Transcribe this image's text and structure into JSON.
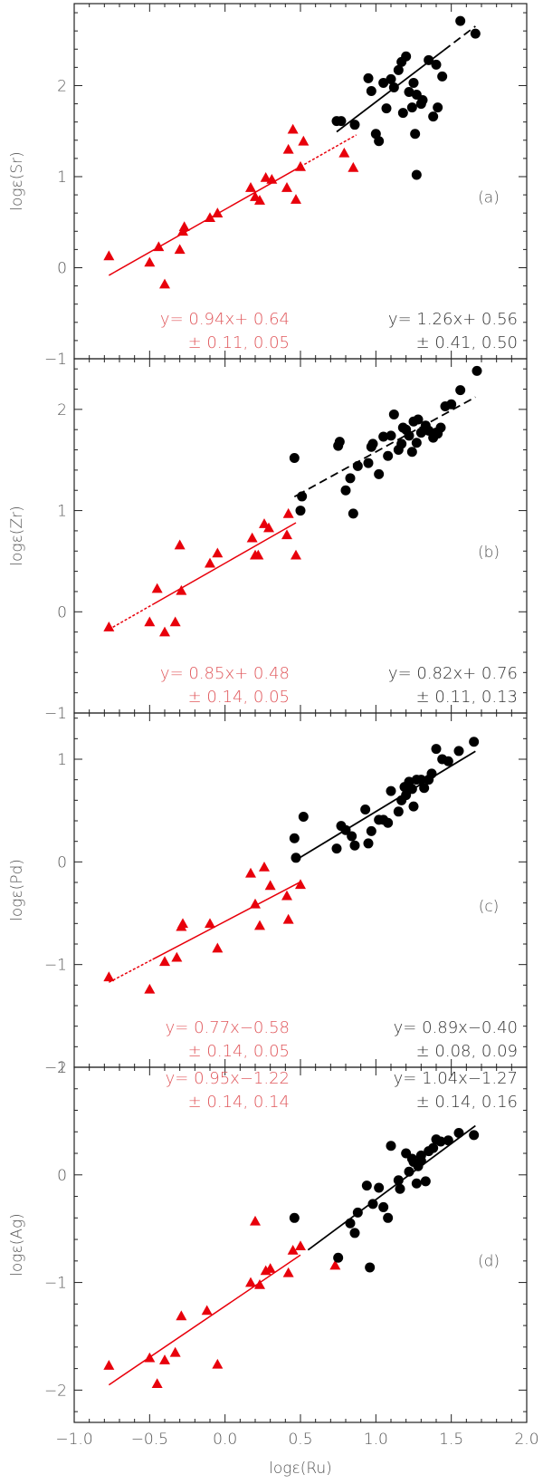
{
  "chart_data": {
    "type": "scatter",
    "xlabel": "logε(Ru)",
    "xlim": [
      -1.0,
      2.0
    ],
    "x_ticks": [
      -1.0,
      -0.5,
      0.0,
      0.5,
      1.0,
      1.5,
      2.0
    ],
    "x_tick_labels": [
      "−1.0",
      "−0.5",
      "0.0",
      "0.5",
      "1.0",
      "1.5",
      "2.0"
    ],
    "colors": {
      "red": "#e8000b",
      "black": "#000000",
      "fit_text_red": "#e0575b",
      "fit_text_black": "#333333"
    },
    "panels": [
      {
        "id": "a",
        "tag": "(a)",
        "ylabel": "logε(Sr)",
        "ylim": [
          -1.0,
          2.9
        ],
        "y_ticks": [
          -1,
          0,
          1,
          2
        ],
        "y_tick_labels": [
          "−1",
          "0",
          "1",
          "2"
        ],
        "red_points": [
          [
            -0.77,
            0.13
          ],
          [
            -0.5,
            0.06
          ],
          [
            -0.44,
            0.23
          ],
          [
            -0.4,
            -0.18
          ],
          [
            -0.3,
            0.2
          ],
          [
            -0.28,
            0.4
          ],
          [
            -0.27,
            0.45
          ],
          [
            -0.1,
            0.55
          ],
          [
            -0.05,
            0.6
          ],
          [
            0.17,
            0.88
          ],
          [
            0.2,
            0.78
          ],
          [
            0.23,
            0.74
          ],
          [
            0.27,
            0.99
          ],
          [
            0.31,
            0.97
          ],
          [
            0.41,
            0.88
          ],
          [
            0.42,
            1.3
          ],
          [
            0.45,
            1.52
          ],
          [
            0.47,
            0.75
          ],
          [
            0.5,
            1.11
          ],
          [
            0.52,
            1.39
          ],
          [
            0.79,
            1.26
          ],
          [
            0.85,
            1.1
          ]
        ],
        "black_points": [
          [
            0.74,
            1.61
          ],
          [
            0.77,
            1.61
          ],
          [
            0.86,
            1.57
          ],
          [
            0.95,
            2.08
          ],
          [
            0.97,
            1.94
          ],
          [
            1.0,
            1.47
          ],
          [
            1.02,
            1.39
          ],
          [
            1.05,
            2.03
          ],
          [
            1.07,
            1.75
          ],
          [
            1.1,
            2.07
          ],
          [
            1.12,
            1.98
          ],
          [
            1.15,
            2.17
          ],
          [
            1.17,
            2.26
          ],
          [
            1.18,
            1.7
          ],
          [
            1.2,
            2.32
          ],
          [
            1.22,
            1.93
          ],
          [
            1.24,
            1.76
          ],
          [
            1.25,
            2.03
          ],
          [
            1.26,
            1.47
          ],
          [
            1.27,
            1.9
          ],
          [
            1.27,
            1.02
          ],
          [
            1.3,
            1.8
          ],
          [
            1.31,
            1.84
          ],
          [
            1.35,
            2.28
          ],
          [
            1.38,
            1.66
          ],
          [
            1.4,
            2.23
          ],
          [
            1.41,
            1.76
          ],
          [
            1.44,
            2.1
          ],
          [
            1.56,
            2.71
          ],
          [
            1.66,
            2.57
          ]
        ],
        "red_fit": {
          "slope": 0.94,
          "intercept": 0.64,
          "x_range": [
            -0.77,
            0.87
          ],
          "solid_to": 0.5
        },
        "black_fit": {
          "slope": 1.26,
          "intercept": 0.56,
          "x_range": [
            0.74,
            1.66
          ],
          "dash_from": 1.45
        },
        "red_eq": "y= 0.94x+ 0.64",
        "red_err": "± 0.11, 0.05",
        "black_eq": "y= 1.26x+ 0.56",
        "black_err": "± 0.41, 0.50"
      },
      {
        "id": "b",
        "tag": "(b)",
        "ylabel": "logε(Zr)",
        "ylim": [
          -1.0,
          2.5
        ],
        "y_ticks": [
          -1,
          0,
          1,
          2
        ],
        "y_tick_labels": [
          "−1",
          "0",
          "1",
          "2"
        ],
        "red_points": [
          [
            -0.77,
            -0.15
          ],
          [
            -0.5,
            -0.1
          ],
          [
            -0.45,
            0.23
          ],
          [
            -0.4,
            -0.2
          ],
          [
            -0.33,
            -0.1
          ],
          [
            -0.3,
            0.66
          ],
          [
            -0.29,
            0.21
          ],
          [
            -0.1,
            0.48
          ],
          [
            -0.05,
            0.58
          ],
          [
            0.18,
            0.73
          ],
          [
            0.2,
            0.56
          ],
          [
            0.22,
            0.56
          ],
          [
            0.26,
            0.87
          ],
          [
            0.29,
            0.83
          ],
          [
            0.41,
            0.76
          ],
          [
            0.42,
            0.97
          ],
          [
            0.47,
            0.56
          ]
        ],
        "black_points": [
          [
            0.46,
            1.52
          ],
          [
            0.5,
            1.0
          ],
          [
            0.51,
            1.14
          ],
          [
            0.75,
            1.64
          ],
          [
            0.76,
            1.68
          ],
          [
            0.8,
            1.2
          ],
          [
            0.83,
            1.32
          ],
          [
            0.85,
            0.97
          ],
          [
            0.88,
            1.44
          ],
          [
            0.95,
            1.47
          ],
          [
            0.97,
            1.63
          ],
          [
            0.98,
            1.66
          ],
          [
            1.02,
            1.36
          ],
          [
            1.05,
            1.73
          ],
          [
            1.08,
            1.54
          ],
          [
            1.1,
            1.74
          ],
          [
            1.12,
            1.95
          ],
          [
            1.15,
            1.6
          ],
          [
            1.17,
            1.66
          ],
          [
            1.18,
            1.82
          ],
          [
            1.2,
            1.8
          ],
          [
            1.22,
            1.74
          ],
          [
            1.24,
            1.58
          ],
          [
            1.25,
            1.88
          ],
          [
            1.27,
            1.67
          ],
          [
            1.28,
            1.9
          ],
          [
            1.3,
            1.77
          ],
          [
            1.33,
            1.84
          ],
          [
            1.35,
            1.79
          ],
          [
            1.38,
            1.72
          ],
          [
            1.4,
            1.77
          ],
          [
            1.41,
            1.76
          ],
          [
            1.43,
            1.82
          ],
          [
            1.46,
            2.03
          ],
          [
            1.5,
            2.05
          ],
          [
            1.56,
            2.19
          ],
          [
            1.67,
            2.38
          ]
        ],
        "red_fit": {
          "slope": 0.85,
          "intercept": 0.48,
          "x_range": [
            -0.77,
            0.47
          ],
          "solid_to": -0.48
        },
        "black_fit": {
          "slope": 0.82,
          "intercept": 0.76,
          "x_range": [
            0.46,
            1.66
          ],
          "dash_from": 0.48
        },
        "red_eq": "y= 0.85x+ 0.48",
        "red_err": "± 0.14, 0.05",
        "black_eq": "y= 0.82x+ 0.76",
        "black_err": "± 0.11, 0.13"
      },
      {
        "id": "c",
        "tag": "(c)",
        "ylabel": "logε(Pd)",
        "ylim": [
          -2.0,
          1.45
        ],
        "y_ticks": [
          -2,
          -1,
          0,
          1
        ],
        "y_tick_labels": [
          "−2",
          "−1",
          "0",
          "1"
        ],
        "red_points": [
          [
            -0.77,
            -1.12
          ],
          [
            -0.5,
            -1.24
          ],
          [
            -0.4,
            -0.97
          ],
          [
            -0.32,
            -0.93
          ],
          [
            -0.29,
            -0.63
          ],
          [
            -0.28,
            -0.6
          ],
          [
            -0.1,
            -0.6
          ],
          [
            -0.05,
            -0.84
          ],
          [
            0.17,
            -0.11
          ],
          [
            0.2,
            -0.41
          ],
          [
            0.23,
            -0.62
          ],
          [
            0.26,
            -0.05
          ],
          [
            0.3,
            -0.23
          ],
          [
            0.41,
            -0.33
          ],
          [
            0.42,
            -0.56
          ],
          [
            0.5,
            -0.22
          ]
        ],
        "black_points": [
          [
            0.46,
            0.23
          ],
          [
            0.47,
            0.04
          ],
          [
            0.52,
            0.44
          ],
          [
            0.74,
            0.13
          ],
          [
            0.77,
            0.35
          ],
          [
            0.8,
            0.31
          ],
          [
            0.84,
            0.25
          ],
          [
            0.86,
            0.16
          ],
          [
            0.93,
            0.51
          ],
          [
            0.95,
            0.18
          ],
          [
            0.97,
            0.3
          ],
          [
            1.02,
            0.41
          ],
          [
            1.05,
            0.41
          ],
          [
            1.08,
            0.38
          ],
          [
            1.1,
            0.69
          ],
          [
            1.15,
            0.49
          ],
          [
            1.17,
            0.6
          ],
          [
            1.19,
            0.73
          ],
          [
            1.2,
            0.65
          ],
          [
            1.22,
            0.78
          ],
          [
            1.24,
            0.71
          ],
          [
            1.25,
            0.54
          ],
          [
            1.27,
            0.8
          ],
          [
            1.3,
            0.8
          ],
          [
            1.32,
            0.72
          ],
          [
            1.35,
            0.8
          ],
          [
            1.37,
            0.86
          ],
          [
            1.4,
            1.1
          ],
          [
            1.44,
            1.0
          ],
          [
            1.48,
            0.98
          ],
          [
            1.55,
            1.08
          ],
          [
            1.65,
            1.17
          ]
        ],
        "red_fit": {
          "slope": 0.77,
          "intercept": -0.58,
          "x_range": [
            -0.77,
            0.5
          ],
          "solid_to": -0.48
        },
        "black_fit": {
          "slope": 0.89,
          "intercept": -0.4,
          "x_range": [
            0.46,
            1.66
          ],
          "dash_from": 1.7
        },
        "red_eq": "y= 0.77x−0.58",
        "red_err": "± 0.14, 0.05",
        "black_eq": "y= 0.89x−0.40",
        "black_err": "± 0.08, 0.09"
      },
      {
        "id": "d",
        "tag": "(d)",
        "ylabel": "logε(Ag)",
        "ylim": [
          -2.3,
          1.0
        ],
        "y_ticks": [
          -2,
          -1,
          0,
          1
        ],
        "y_tick_labels": [
          "−2",
          "−1",
          "0",
          "1"
        ],
        "red_points": [
          [
            -0.77,
            -1.77
          ],
          [
            -0.5,
            -1.7
          ],
          [
            -0.45,
            -1.94
          ],
          [
            -0.4,
            -1.72
          ],
          [
            -0.33,
            -1.65
          ],
          [
            -0.29,
            -1.31
          ],
          [
            -0.12,
            -1.26
          ],
          [
            -0.05,
            -1.76
          ],
          [
            0.17,
            -1.0
          ],
          [
            0.2,
            -0.43
          ],
          [
            0.23,
            -1.02
          ],
          [
            0.27,
            -0.89
          ],
          [
            0.3,
            -0.87
          ],
          [
            0.42,
            -0.91
          ],
          [
            0.45,
            -0.7
          ],
          [
            0.5,
            -0.66
          ],
          [
            0.73,
            -0.84
          ]
        ],
        "black_points": [
          [
            0.46,
            -0.4
          ],
          [
            0.75,
            -0.77
          ],
          [
            0.83,
            -0.45
          ],
          [
            0.86,
            -0.54
          ],
          [
            0.88,
            -0.35
          ],
          [
            0.94,
            -0.1
          ],
          [
            0.96,
            -0.86
          ],
          [
            0.98,
            -0.27
          ],
          [
            1.02,
            -0.12
          ],
          [
            1.05,
            -0.3
          ],
          [
            1.08,
            -0.4
          ],
          [
            1.1,
            0.27
          ],
          [
            1.15,
            -0.05
          ],
          [
            1.16,
            -0.13
          ],
          [
            1.2,
            0.2
          ],
          [
            1.22,
            0.03
          ],
          [
            1.24,
            0.15
          ],
          [
            1.25,
            0.12
          ],
          [
            1.27,
            -0.08
          ],
          [
            1.28,
            0.08
          ],
          [
            1.3,
            0.18
          ],
          [
            1.3,
            0.13
          ],
          [
            1.33,
            -0.06
          ],
          [
            1.35,
            0.22
          ],
          [
            1.38,
            0.25
          ],
          [
            1.4,
            0.33
          ],
          [
            1.43,
            0.31
          ],
          [
            1.48,
            0.32
          ],
          [
            1.55,
            0.39
          ],
          [
            1.65,
            0.37
          ]
        ],
        "red_fit": {
          "slope": 0.95,
          "intercept": -1.22,
          "x_range": [
            -0.77,
            0.5
          ],
          "solid_to": 0.5
        },
        "black_fit": {
          "slope": 1.04,
          "intercept": -1.27,
          "x_range": [
            0.55,
            1.66
          ],
          "dash_from": 1.7
        },
        "red_eq": "y= 0.95x−1.22",
        "red_err": "± 0.14, 0.14",
        "black_eq": "y= 1.04x−1.27",
        "black_err": "± 0.14, 0.16"
      }
    ]
  }
}
